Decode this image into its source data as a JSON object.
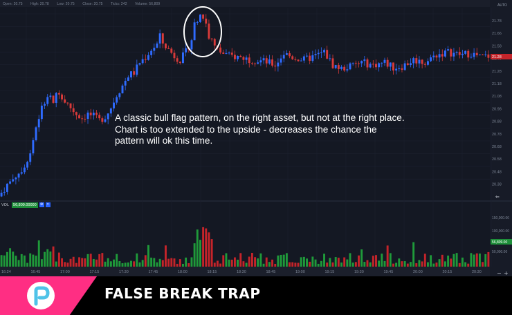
{
  "ohlc": {
    "open": "Open: 20.75",
    "high": "High: 20.78",
    "low": "Low: 20.75",
    "close": "Close: 20.75",
    "ticks": "Ticks: 242",
    "volume": "Volume: 56,809"
  },
  "annotation": {
    "line1": "A classic bull flag pattern, on the right asset, but not at the right place.",
    "line2": "Chart is too extended to the upside - decreases the chance the",
    "line3": "pattern will ok this time."
  },
  "volume_legend": {
    "label": "VOL",
    "value": "56,809.00000",
    "btn_gear": "⚙",
    "btn_close": "×"
  },
  "auto_label": "AUTO",
  "banner": {
    "title": "FALSE BREAK TRAP",
    "pink": "#ff2e83",
    "background": "#000000"
  },
  "chart_data": {
    "type": "candlestick",
    "y_axis": {
      "ticks": [
        "21.78",
        "21.66",
        "21.58",
        "21.40",
        "21.28",
        "21.18",
        "21.08",
        "20.98",
        "20.88",
        "20.78",
        "20.68",
        "20.58",
        "20.48",
        "20.38"
      ],
      "ylim": [
        20.33,
        21.82
      ]
    },
    "volume_axis": {
      "ticks": [
        "150,000.00",
        "100,000.00",
        "56,809.00",
        "50,000.00"
      ],
      "current": "56,809.00"
    },
    "x_axis": {
      "ticks": [
        "16:24",
        "16:45",
        "17:00",
        "17:15",
        "17:30",
        "17:45",
        "18:00",
        "18:15",
        "18:30",
        "18:45",
        "19:00",
        "19:15",
        "19:30",
        "19:45",
        "20:00",
        "20:15",
        "20:30"
      ]
    },
    "price_path": [
      [
        0,
        20.36
      ],
      [
        3,
        20.45
      ],
      [
        6,
        20.52
      ],
      [
        9,
        20.6
      ],
      [
        11,
        20.7
      ],
      [
        13,
        20.9
      ],
      [
        15,
        21.05
      ],
      [
        17,
        21.14
      ],
      [
        19,
        21.1
      ],
      [
        21,
        21.18
      ],
      [
        23,
        21.1
      ],
      [
        25,
        21.05
      ],
      [
        27,
        21.0
      ],
      [
        29,
        20.97
      ],
      [
        31,
        21.0
      ],
      [
        33,
        20.98
      ],
      [
        35,
        20.95
      ],
      [
        37,
        20.98
      ],
      [
        39,
        21.05
      ],
      [
        41,
        21.15
      ],
      [
        43,
        21.22
      ],
      [
        45,
        21.3
      ],
      [
        47,
        21.32
      ],
      [
        49,
        21.4
      ],
      [
        51,
        21.44
      ],
      [
        53,
        21.5
      ],
      [
        55,
        21.54
      ],
      [
        56,
        21.6
      ],
      [
        57,
        21.55
      ],
      [
        59,
        21.5
      ],
      [
        61,
        21.45
      ],
      [
        63,
        21.42
      ],
      [
        65,
        21.48
      ],
      [
        67,
        21.58
      ],
      [
        68,
        21.7
      ],
      [
        69,
        21.74
      ],
      [
        70,
        21.78
      ],
      [
        71,
        21.75
      ],
      [
        72,
        21.7
      ],
      [
        73,
        21.6
      ],
      [
        75,
        21.52
      ],
      [
        77,
        21.48
      ],
      [
        80,
        21.45
      ],
      [
        84,
        21.44
      ],
      [
        88,
        21.42
      ],
      [
        92,
        21.41
      ],
      [
        96,
        21.38
      ],
      [
        99,
        21.47
      ],
      [
        102,
        21.44
      ],
      [
        106,
        21.42
      ],
      [
        110,
        21.45
      ],
      [
        113,
        21.48
      ],
      [
        116,
        21.38
      ],
      [
        119,
        21.35
      ],
      [
        122,
        21.37
      ],
      [
        126,
        21.4
      ],
      [
        130,
        21.38
      ],
      [
        134,
        21.4
      ],
      [
        137,
        21.36
      ],
      [
        140,
        21.37
      ],
      [
        144,
        21.42
      ],
      [
        148,
        21.4
      ],
      [
        152,
        21.46
      ],
      [
        156,
        21.48
      ],
      [
        160,
        21.46
      ],
      [
        164,
        21.47
      ],
      [
        167,
        21.44
      ],
      [
        170,
        21.45
      ]
    ],
    "highlight": "circled breakout near the high around 18:15",
    "colors": {
      "up": "#2f6bff",
      "down": "#d93a3a",
      "vol_up": "#1f9a3a",
      "vol_down": "#c4242a"
    }
  }
}
